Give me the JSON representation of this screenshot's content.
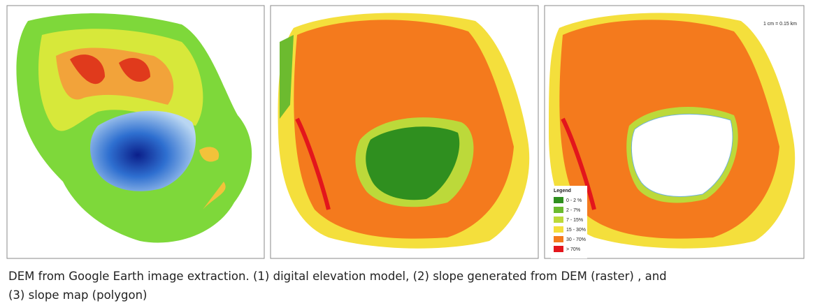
{
  "figure": {
    "caption": [
      "DEM from Google Earth image extraction. (1) digital elevation model, (2) slope generated from DEM (raster) , and",
      "(3) slope map (polygon)"
    ],
    "scale": "1 cm = 0.15 km",
    "legend": {
      "title": "Legend",
      "items": [
        {
          "label": "0 - 2 %",
          "color": "#2f8f1f"
        },
        {
          "label": "2 - 7%",
          "color": "#6cbb2f"
        },
        {
          "label": "7 - 15%",
          "color": "#bcd93a"
        },
        {
          "label": "15 - 30%",
          "color": "#f4df3c"
        },
        {
          "label": "30 - 70%",
          "color": "#f47a1d"
        },
        {
          "label": "> 70%",
          "color": "#e3161c"
        }
      ]
    }
  }
}
